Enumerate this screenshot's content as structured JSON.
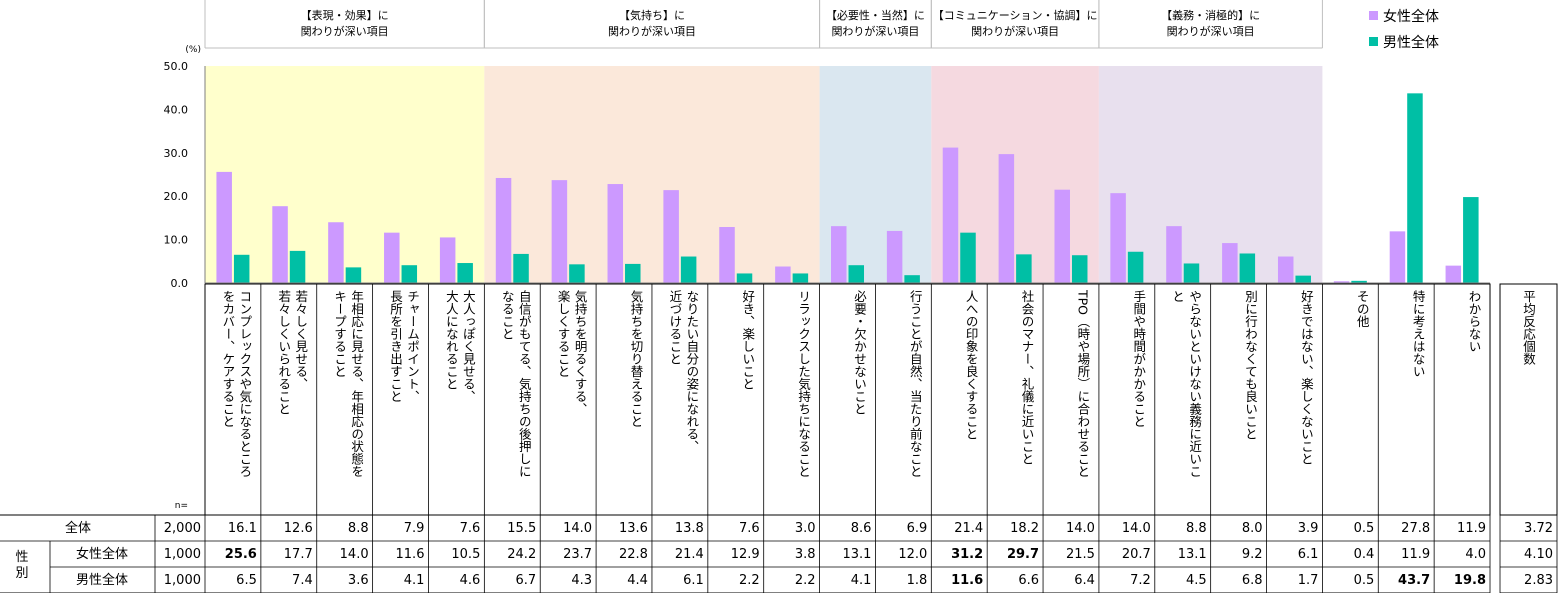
{
  "chart_data": {
    "type": "bar",
    "unit_label": "(%)",
    "ylim": [
      0,
      50
    ],
    "yticks": [
      "0.0",
      "10.0",
      "20.0",
      "30.0",
      "40.0",
      "50.0"
    ],
    "grid": false,
    "legend_position": "top-right",
    "groups": [
      {
        "label": "【表現・効果】に関わりが深い項目",
        "label_lines": [
          "【表現・効果】に",
          "関わりが深い項目"
        ],
        "color": "#FFFFCC",
        "start": 0,
        "count": 5
      },
      {
        "label": "【気持ち】に関わりが深い項目",
        "label_lines": [
          "【気持ち】に",
          "関わりが深い項目"
        ],
        "color": "#FBE8DA",
        "start": 5,
        "count": 6
      },
      {
        "label": "【必要性・当然】に関わりが深い項目",
        "label_lines": [
          "【必要性・当然】に",
          "関わりが深い項目"
        ],
        "color": "#DAE7F0",
        "start": 11,
        "count": 2
      },
      {
        "label": "【コミュニケーション・協調】に関わりが深い項目",
        "label_lines": [
          "【コミュニケーション・協調】に",
          "関わりが深い項目"
        ],
        "color": "#F5D9E0",
        "start": 13,
        "count": 3
      },
      {
        "label": "【義務・消極的】に関わりが深い項目",
        "label_lines": [
          "【義務・消極的】に",
          "関わりが深い項目"
        ],
        "color": "#E8E0EE",
        "start": 16,
        "count": 4
      }
    ],
    "categories": [
      {
        "lines": [
          "コンプレックスや気になるところ",
          "をカバー、ケアすること"
        ]
      },
      {
        "lines": [
          "若々しく見せる、",
          "若々しくいられること"
        ]
      },
      {
        "lines": [
          "年相応に見せる、年相応の状態を",
          "キープすること"
        ]
      },
      {
        "lines": [
          "チャームポイント、",
          "長所を引き出すこと"
        ]
      },
      {
        "lines": [
          "大人っぽく見せる、",
          "大人になれること"
        ]
      },
      {
        "lines": [
          "自信がもてる、気持ちの後押しに",
          "なること"
        ]
      },
      {
        "lines": [
          "気持ちを明るくする、",
          "楽しくすること"
        ]
      },
      {
        "lines": [
          "気持ちを切り替えること"
        ]
      },
      {
        "lines": [
          "なりたい自分の姿になれる、",
          "近づけること"
        ]
      },
      {
        "lines": [
          "好き、楽しいこと"
        ]
      },
      {
        "lines": [
          "リラックスした気持ちになること"
        ]
      },
      {
        "lines": [
          "必要・欠かせないこと"
        ]
      },
      {
        "lines": [
          "行うことが自然、当たり前なこと"
        ]
      },
      {
        "lines": [
          "人への印象を良くすること"
        ]
      },
      {
        "lines": [
          "社会のマナー、礼儀に近いこと"
        ]
      },
      {
        "lines": [
          "TPO（時や場所）に合わせること"
        ]
      },
      {
        "lines": [
          "手間や時間がかかること"
        ]
      },
      {
        "lines": [
          "やらないといけない義務に近いこ",
          "と"
        ]
      },
      {
        "lines": [
          "別に行わなくても良いこと"
        ]
      },
      {
        "lines": [
          "好きではない、楽しくないこと"
        ]
      },
      {
        "lines": [
          "その他"
        ]
      },
      {
        "lines": [
          "特に考えはない"
        ]
      },
      {
        "lines": [
          "わからない"
        ]
      }
    ],
    "series": [
      {
        "name": "女性全体",
        "color": "#CC99FF",
        "values": [
          25.6,
          17.7,
          14.0,
          11.6,
          10.5,
          24.2,
          23.7,
          22.8,
          21.4,
          12.9,
          3.8,
          13.1,
          12.0,
          31.2,
          29.7,
          21.5,
          20.7,
          13.1,
          9.2,
          6.1,
          0.4,
          11.9,
          4.0
        ]
      },
      {
        "name": "男性全体",
        "color": "#00BFA5",
        "values": [
          6.5,
          7.4,
          3.6,
          4.1,
          4.6,
          6.7,
          4.3,
          4.4,
          6.1,
          2.2,
          2.2,
          4.1,
          1.8,
          11.6,
          6.6,
          6.4,
          7.2,
          4.5,
          6.8,
          1.7,
          0.5,
          43.7,
          19.8
        ]
      }
    ],
    "table": {
      "n_label": "n=",
      "extra_column_lines": [
        "平均反応個数"
      ],
      "side_label": "性別",
      "rows": [
        {
          "label": "全体",
          "n": "2,000",
          "values": [
            "16.1",
            "12.6",
            "8.8",
            "7.9",
            "7.6",
            "15.5",
            "14.0",
            "13.6",
            "13.8",
            "7.6",
            "3.0",
            "8.6",
            "6.9",
            "21.4",
            "18.2",
            "14.0",
            "14.0",
            "8.8",
            "8.0",
            "3.9",
            "0.5",
            "27.8",
            "11.9"
          ],
          "extra": "3.72",
          "bold": []
        },
        {
          "label": "女性全体",
          "n": "1,000",
          "values": [
            "25.6",
            "17.7",
            "14.0",
            "11.6",
            "10.5",
            "24.2",
            "23.7",
            "22.8",
            "21.4",
            "12.9",
            "3.8",
            "13.1",
            "12.0",
            "31.2",
            "29.7",
            "21.5",
            "20.7",
            "13.1",
            "9.2",
            "6.1",
            "0.4",
            "11.9",
            "4.0"
          ],
          "extra": "4.10",
          "bold": [
            0,
            13,
            14
          ]
        },
        {
          "label": "男性全体",
          "n": "1,000",
          "values": [
            "6.5",
            "7.4",
            "3.6",
            "4.1",
            "4.6",
            "6.7",
            "4.3",
            "4.4",
            "6.1",
            "2.2",
            "2.2",
            "4.1",
            "1.8",
            "11.6",
            "6.6",
            "6.4",
            "7.2",
            "4.5",
            "6.8",
            "1.7",
            "0.5",
            "43.7",
            "19.8"
          ],
          "extra": "2.83",
          "bold": [
            13,
            21,
            22
          ]
        }
      ]
    }
  }
}
